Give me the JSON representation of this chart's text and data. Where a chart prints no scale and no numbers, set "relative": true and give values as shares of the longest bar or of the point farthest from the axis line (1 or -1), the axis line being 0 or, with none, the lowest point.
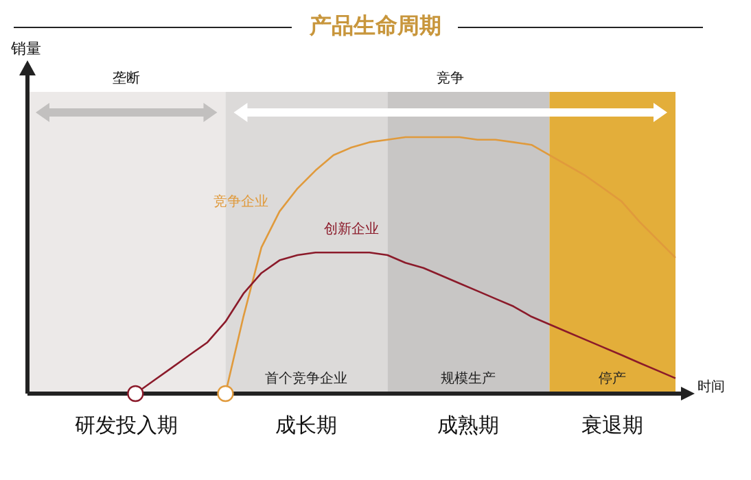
{
  "chart_data": {
    "type": "line",
    "relative": true,
    "title": "产品生命周期",
    "xlabel": "时间",
    "tick_labels": false,
    "categories": [
      null,
      null,
      null,
      null,
      null,
      null,
      null,
      null,
      null,
      null,
      null,
      null,
      null,
      null,
      null,
      null,
      null,
      null,
      null,
      null,
      null,
      null,
      null,
      null,
      null,
      null,
      null,
      null,
      null,
      null,
      null,
      null,
      null,
      null,
      null,
      null,
      null
    ],
    "series": [
      {
        "name": "竞争企业",
        "color": "#e09a3c",
        "values": [
          null,
          null,
          null,
          null,
          null,
          null,
          null,
          null,
          null,
          null,
          null,
          0,
          0.3,
          0.57,
          0.71,
          0.8,
          0.87,
          0.93,
          0.96,
          0.98,
          0.99,
          1.0,
          1.0,
          1.0,
          1.0,
          0.99,
          0.99,
          0.98,
          0.97,
          0.93,
          0.89,
          0.85,
          0.8,
          0.75,
          0.67,
          0.6,
          0.53
        ]
      },
      {
        "name": "创新企业",
        "color": "#8b1a2a",
        "values": [
          null,
          null,
          null,
          null,
          null,
          null,
          0,
          0.05,
          0.1,
          0.15,
          0.2,
          0.28,
          0.39,
          0.47,
          0.52,
          0.54,
          0.55,
          0.55,
          0.55,
          0.55,
          0.54,
          0.51,
          0.49,
          0.46,
          0.43,
          0.4,
          0.37,
          0.34,
          0.3,
          0.27,
          0.24,
          0.21,
          0.18,
          0.15,
          0.12,
          0.09,
          0.06
        ]
      }
    ],
    "annotations": [
      "垄断",
      "竞争",
      "研发投入期",
      "成长期",
      "成熟期",
      "衰退期",
      "首个竞争企业",
      "规模生产",
      "停产",
      "销量"
    ]
  }
}
